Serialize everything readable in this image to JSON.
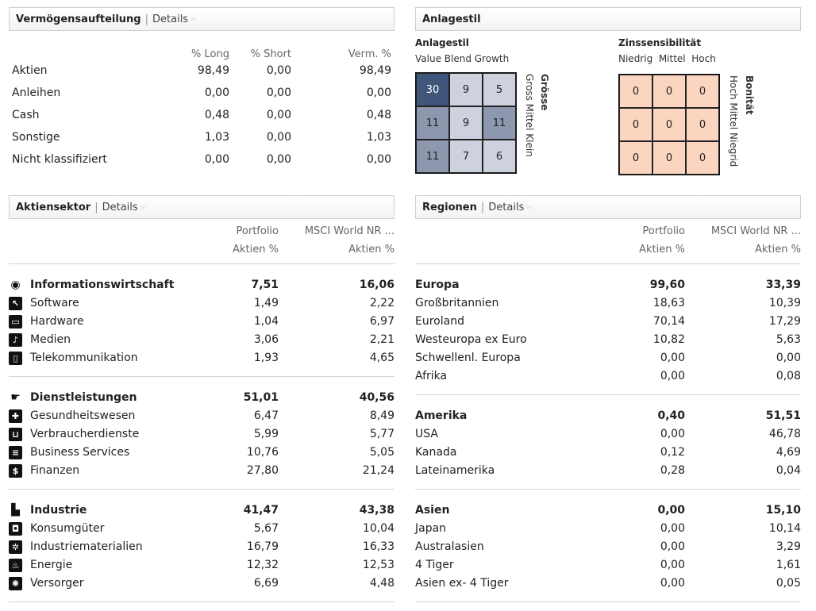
{
  "asset_allocation": {
    "title": "Vermögensaufteilung",
    "details_link": "Details",
    "columns": [
      "% Long",
      "% Short",
      "Verm. %"
    ],
    "rows": [
      {
        "label": "Aktien",
        "long": "98,49",
        "short": "0,00",
        "net": "98,49"
      },
      {
        "label": "Anleihen",
        "long": "0,00",
        "short": "0,00",
        "net": "0,00"
      },
      {
        "label": "Cash",
        "long": "0,48",
        "short": "0,00",
        "net": "0,48"
      },
      {
        "label": "Sonstige",
        "long": "1,03",
        "short": "0,00",
        "net": "1,03"
      },
      {
        "label": "Nicht klassifiziert",
        "long": "0,00",
        "short": "0,00",
        "net": "0,00"
      }
    ]
  },
  "investment_style": {
    "title": "Anlagestil",
    "equity": {
      "heading": "Anlagestil",
      "col_labels": "Value Blend Growth",
      "side_title": "Grösse",
      "side_labels": "Gross Mittel Klein",
      "cells": [
        "30",
        "9",
        "5",
        "11",
        "9",
        "11",
        "11",
        "7",
        "6"
      ],
      "cell_colors": [
        "#3f5579",
        "#cdd2de",
        "#cdd2de",
        "#8d97ae",
        "#cdd2de",
        "#8d97ae",
        "#8d97ae",
        "#cdd2de",
        "#cdd2de"
      ]
    },
    "fixed_income": {
      "heading": "Zinssensibilität",
      "col_labels": "Niedrig  Mittel  Hoch",
      "side_title": "Bonität",
      "side_labels": "Hoch Mittel Niegrid",
      "cells": [
        "0",
        "0",
        "0",
        "0",
        "0",
        "0",
        "0",
        "0",
        "0"
      ],
      "cell_color": "#fbd5c0"
    }
  },
  "sectors": {
    "title": "Aktiensektor",
    "details_link": "Details",
    "col1": [
      "Portfolio",
      "Aktien %"
    ],
    "col2": [
      "MSCI World NR ...",
      "Aktien %"
    ],
    "groups": [
      {
        "label": "Informationswirtschaft",
        "icon": "eye-icon",
        "p": "7,51",
        "b": "16,06",
        "items": [
          {
            "label": "Software",
            "icon": "cursor-icon",
            "p": "1,49",
            "b": "2,22"
          },
          {
            "label": "Hardware",
            "icon": "monitor-icon",
            "p": "1,04",
            "b": "6,97"
          },
          {
            "label": "Medien",
            "icon": "microphone-icon",
            "p": "3,06",
            "b": "2,21"
          },
          {
            "label": "Telekommunikation",
            "icon": "phone-icon",
            "p": "1,93",
            "b": "4,65"
          }
        ]
      },
      {
        "label": "Dienstleistungen",
        "icon": "hand-icon",
        "p": "51,01",
        "b": "40,56",
        "items": [
          {
            "label": "Gesundheitswesen",
            "icon": "pill-icon",
            "p": "6,47",
            "b": "8,49"
          },
          {
            "label": "Verbraucherdienste",
            "icon": "cart-icon",
            "p": "5,99",
            "b": "5,77"
          },
          {
            "label": "Business Services",
            "icon": "document-icon",
            "p": "10,76",
            "b": "5,05"
          },
          {
            "label": "Finanzen",
            "icon": "dollar-icon",
            "p": "27,80",
            "b": "21,24"
          }
        ]
      },
      {
        "label": "Industrie",
        "icon": "factory-icon",
        "p": "41,47",
        "b": "43,38",
        "items": [
          {
            "label": "Konsumgüter",
            "icon": "car-icon",
            "p": "5,67",
            "b": "10,04"
          },
          {
            "label": "Industriematerialien",
            "icon": "gear-icon",
            "p": "16,79",
            "b": "16,33"
          },
          {
            "label": "Energie",
            "icon": "flame-icon",
            "p": "12,32",
            "b": "12,53"
          },
          {
            "label": "Versorger",
            "icon": "bulb-icon",
            "p": "6,69",
            "b": "4,48"
          }
        ]
      }
    ]
  },
  "regions": {
    "title": "Regionen",
    "details_link": "Details",
    "col1": [
      "Portfolio",
      "Aktien %"
    ],
    "col2": [
      "MSCI World NR ...",
      "Aktien %"
    ],
    "groups": [
      {
        "label": "Europa",
        "p": "99,60",
        "b": "33,39",
        "items": [
          {
            "label": "Großbritannien",
            "p": "18,63",
            "b": "10,39"
          },
          {
            "label": "Euroland",
            "p": "70,14",
            "b": "17,29"
          },
          {
            "label": "Westeuropa ex Euro",
            "p": "10,82",
            "b": "5,63"
          },
          {
            "label": "Schwellenl. Europa",
            "p": "0,00",
            "b": "0,00"
          },
          {
            "label": "Afrika",
            "p": "0,00",
            "b": "0,08"
          }
        ]
      },
      {
        "label": "Amerika",
        "p": "0,40",
        "b": "51,51",
        "items": [
          {
            "label": "USA",
            "p": "0,00",
            "b": "46,78"
          },
          {
            "label": "Kanada",
            "p": "0,12",
            "b": "4,69"
          },
          {
            "label": "Lateinamerika",
            "p": "0,28",
            "b": "0,04"
          }
        ]
      },
      {
        "label": "Asien",
        "p": "0,00",
        "b": "15,10",
        "items": [
          {
            "label": "Japan",
            "p": "0,00",
            "b": "10,14"
          },
          {
            "label": "Australasien",
            "p": "0,00",
            "b": "3,29"
          },
          {
            "label": "4 Tiger",
            "p": "0,00",
            "b": "1,61"
          },
          {
            "label": "Asien ex- 4 Tiger",
            "p": "0,00",
            "b": "0,05"
          }
        ]
      }
    ]
  }
}
